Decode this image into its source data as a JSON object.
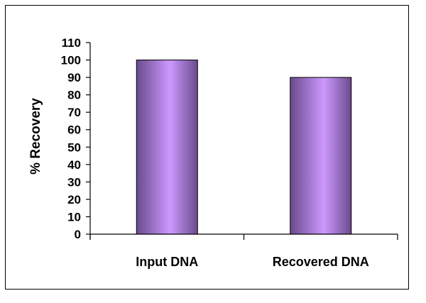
{
  "chart_data": {
    "type": "bar",
    "categories": [
      "Input DNA",
      "Recovered DNA"
    ],
    "values": [
      100,
      90
    ],
    "ylabel": "% Recovery",
    "ylim": [
      0,
      110
    ],
    "yticks": [
      0,
      10,
      20,
      30,
      40,
      50,
      60,
      70,
      80,
      90,
      100,
      110
    ],
    "grid": false,
    "legend": "none",
    "bar_colors": {
      "edge": "#6a4a8c",
      "center": "#cc99ff",
      "outline": "#000000"
    }
  }
}
